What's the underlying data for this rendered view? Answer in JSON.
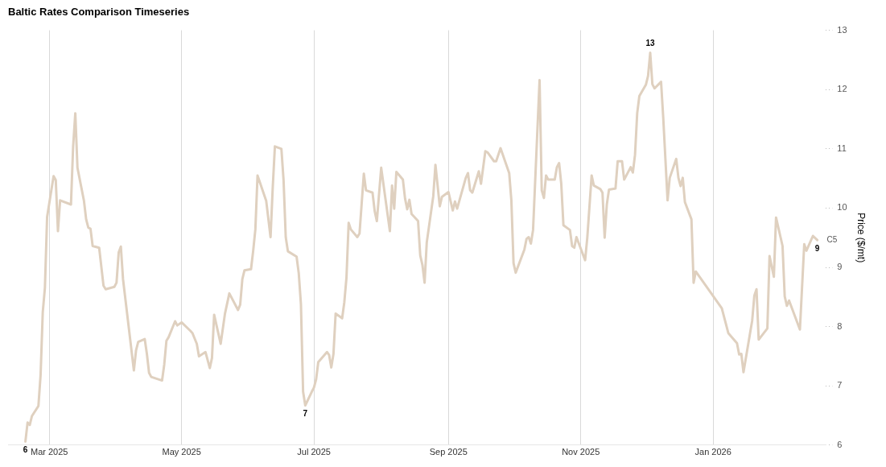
{
  "chart_data": {
    "type": "line",
    "title": "Baltic Rates Comparison Timeseries",
    "ylabel": "Price ($/mt)",
    "x": [
      "2025-02-18",
      "2025-02-19",
      "2025-02-20",
      "2025-02-21",
      "2025-02-24",
      "2025-02-25",
      "2025-02-26",
      "2025-02-27",
      "2025-02-28",
      "2025-03-03",
      "2025-03-04",
      "2025-03-05",
      "2025-03-06",
      "2025-03-11",
      "2025-03-12",
      "2025-03-13",
      "2025-03-14",
      "2025-03-17",
      "2025-03-18",
      "2025-03-19",
      "2025-03-20",
      "2025-03-21",
      "2025-03-24",
      "2025-03-26",
      "2025-03-27",
      "2025-03-31",
      "2025-04-01",
      "2025-04-02",
      "2025-04-03",
      "2025-04-04",
      "2025-04-09",
      "2025-04-10",
      "2025-04-11",
      "2025-04-14",
      "2025-04-15",
      "2025-04-16",
      "2025-04-17",
      "2025-04-22",
      "2025-04-23",
      "2025-04-24",
      "2025-04-25",
      "2025-04-28",
      "2025-04-29",
      "2025-05-01",
      "2025-05-05",
      "2025-05-06",
      "2025-05-08",
      "2025-05-09",
      "2025-05-12",
      "2025-05-14",
      "2025-05-15",
      "2025-05-16",
      "2025-05-19",
      "2025-05-21",
      "2025-05-23",
      "2025-05-27",
      "2025-05-28",
      "2025-05-29",
      "2025-05-30",
      "2025-06-02",
      "2025-06-03",
      "2025-06-04",
      "2025-06-05",
      "2025-06-09",
      "2025-06-11",
      "2025-06-12",
      "2025-06-13",
      "2025-06-16",
      "2025-06-17",
      "2025-06-18",
      "2025-06-19",
      "2025-06-23",
      "2025-06-24",
      "2025-06-25",
      "2025-06-26",
      "2025-06-27",
      "2025-06-30",
      "2025-07-01",
      "2025-07-02",
      "2025-07-03",
      "2025-07-07",
      "2025-07-08",
      "2025-07-09",
      "2025-07-10",
      "2025-07-11",
      "2025-07-14",
      "2025-07-15",
      "2025-07-16",
      "2025-07-17",
      "2025-07-18",
      "2025-07-21",
      "2025-07-22",
      "2025-07-24",
      "2025-07-25",
      "2025-07-28",
      "2025-07-29",
      "2025-07-30",
      "2025-08-01",
      "2025-08-05",
      "2025-08-06",
      "2025-08-07",
      "2025-08-08",
      "2025-08-11",
      "2025-08-12",
      "2025-08-13",
      "2025-08-14",
      "2025-08-15",
      "2025-08-18",
      "2025-08-19",
      "2025-08-20",
      "2025-08-21",
      "2025-08-22",
      "2025-08-25",
      "2025-08-26",
      "2025-08-28",
      "2025-08-29",
      "2025-09-01",
      "2025-09-03",
      "2025-09-04",
      "2025-09-05",
      "2025-09-09",
      "2025-09-10",
      "2025-09-11",
      "2025-09-12",
      "2025-09-15",
      "2025-09-16",
      "2025-09-18",
      "2025-09-19",
      "2025-09-22",
      "2025-09-23",
      "2025-09-25",
      "2025-09-29",
      "2025-09-30",
      "2025-10-01",
      "2025-10-02",
      "2025-10-06",
      "2025-10-07",
      "2025-10-08",
      "2025-10-09",
      "2025-10-10",
      "2025-10-13",
      "2025-10-14",
      "2025-10-15",
      "2025-10-16",
      "2025-10-17",
      "2025-10-20",
      "2025-10-21",
      "2025-10-22",
      "2025-10-23",
      "2025-10-24",
      "2025-10-27",
      "2025-10-28",
      "2025-10-29",
      "2025-10-30",
      "2025-11-03",
      "2025-11-04",
      "2025-11-06",
      "2025-11-07",
      "2025-11-10",
      "2025-11-11",
      "2025-11-12",
      "2025-11-13",
      "2025-11-14",
      "2025-11-17",
      "2025-11-18",
      "2025-11-20",
      "2025-11-21",
      "2025-11-24",
      "2025-11-25",
      "2025-11-26",
      "2025-11-27",
      "2025-11-28",
      "2025-12-01",
      "2025-12-02",
      "2025-12-03",
      "2025-12-04",
      "2025-12-05",
      "2025-12-08",
      "2025-12-09",
      "2025-12-11",
      "2025-12-12",
      "2025-12-15",
      "2025-12-16",
      "2025-12-17",
      "2025-12-18",
      "2025-12-19",
      "2025-12-22",
      "2025-12-23",
      "2025-12-24",
      "2026-01-05",
      "2026-01-08",
      "2026-01-12",
      "2026-01-13",
      "2026-01-14",
      "2026-01-15",
      "2026-01-19",
      "2026-01-20",
      "2026-01-21",
      "2026-01-22",
      "2026-01-26",
      "2026-01-27",
      "2026-01-29",
      "2026-01-30",
      "2026-02-02",
      "2026-02-03",
      "2026-02-04",
      "2026-02-05",
      "2026-02-10",
      "2026-02-12",
      "2026-02-13",
      "2026-02-16",
      "2026-02-18"
    ],
    "series": [
      {
        "name": "C5",
        "color": "#dfd0bf",
        "values": [
          6.06,
          6.38,
          6.34,
          6.49,
          6.66,
          7.18,
          8.24,
          8.66,
          9.85,
          10.54,
          10.47,
          9.61,
          10.13,
          10.06,
          11.04,
          11.6,
          10.68,
          10.12,
          9.81,
          9.67,
          9.65,
          9.36,
          9.33,
          8.69,
          8.63,
          8.67,
          8.74,
          9.25,
          9.35,
          8.8,
          7.26,
          7.6,
          7.74,
          7.79,
          7.54,
          7.22,
          7.15,
          7.09,
          7.36,
          7.76,
          7.82,
          8.09,
          8.02,
          8.07,
          7.93,
          7.89,
          7.71,
          7.5,
          7.57,
          7.3,
          7.47,
          8.2,
          7.71,
          8.22,
          8.56,
          8.28,
          8.37,
          8.8,
          8.95,
          8.97,
          9.28,
          9.64,
          10.55,
          10.12,
          9.51,
          10.34,
          11.04,
          11.0,
          10.47,
          9.51,
          9.27,
          9.18,
          8.9,
          8.38,
          6.9,
          6.67,
          6.9,
          6.97,
          7.11,
          7.4,
          7.57,
          7.52,
          7.31,
          7.54,
          8.22,
          8.14,
          8.41,
          8.83,
          9.75,
          9.64,
          9.51,
          9.57,
          10.58,
          10.3,
          10.26,
          9.95,
          9.78,
          10.68,
          9.61,
          10.38,
          9.99,
          10.61,
          10.48,
          10.16,
          9.98,
          10.14,
          9.9,
          9.78,
          9.2,
          9.04,
          8.74,
          9.42,
          10.2,
          10.73,
          10.03,
          10.19,
          10.27,
          9.96,
          10.11,
          9.99,
          10.51,
          10.59,
          10.3,
          10.26,
          10.62,
          10.41,
          10.96,
          10.94,
          10.79,
          10.79,
          11.01,
          10.59,
          10.13,
          9.07,
          8.91,
          9.3,
          9.48,
          9.51,
          9.4,
          9.63,
          12.16,
          10.3,
          10.17,
          10.55,
          10.48,
          10.48,
          10.69,
          10.76,
          10.41,
          9.71,
          9.63,
          9.36,
          9.33,
          9.51,
          9.12,
          9.5,
          10.55,
          10.38,
          10.32,
          10.26,
          9.5,
          10.06,
          10.31,
          10.33,
          10.79,
          10.79,
          10.48,
          10.69,
          10.6,
          10.9,
          11.6,
          11.89,
          12.08,
          12.23,
          12.62,
          12.09,
          12.02,
          12.13,
          11.53,
          10.13,
          10.51,
          10.83,
          10.51,
          10.37,
          10.51,
          10.1,
          9.81,
          8.74,
          8.93,
          8.31,
          7.89,
          7.72,
          7.53,
          7.54,
          7.23,
          8.1,
          8.52,
          8.63,
          7.78,
          7.97,
          9.19,
          8.84,
          9.84,
          9.36,
          8.51,
          8.35,
          8.44,
          7.95,
          9.39,
          9.28,
          9.53,
          9.46
        ],
        "value_labels": [
          "6",
          null,
          null,
          null,
          null,
          null,
          null,
          null,
          null,
          null,
          null,
          null,
          null,
          null,
          null,
          null,
          null,
          null,
          null,
          null,
          null,
          null,
          null,
          null,
          null,
          null,
          null,
          null,
          null,
          null,
          null,
          null,
          null,
          null,
          null,
          null,
          null,
          null,
          null,
          null,
          null,
          null,
          null,
          null,
          null,
          null,
          null,
          null,
          null,
          null,
          null,
          null,
          null,
          null,
          null,
          null,
          null,
          null,
          null,
          null,
          null,
          null,
          null,
          null,
          null,
          null,
          null,
          null,
          null,
          null,
          null,
          null,
          null,
          null,
          null,
          "7",
          null,
          null,
          null,
          null,
          null,
          null,
          null,
          null,
          null,
          null,
          null,
          null,
          null,
          null,
          null,
          null,
          null,
          null,
          null,
          null,
          null,
          null,
          null,
          null,
          null,
          null,
          null,
          null,
          null,
          null,
          null,
          null,
          null,
          null,
          null,
          null,
          null,
          null,
          null,
          null,
          null,
          null,
          null,
          null,
          null,
          null,
          null,
          null,
          null,
          null,
          null,
          null,
          null,
          null,
          null,
          null,
          null,
          null,
          null,
          null,
          null,
          null,
          null,
          null,
          null,
          null,
          null,
          null,
          null,
          null,
          null,
          null,
          null,
          null,
          null,
          null,
          null,
          null,
          null,
          null,
          null,
          null,
          null,
          null,
          null,
          null,
          null,
          null,
          null,
          null,
          null,
          null,
          null,
          null,
          null,
          null,
          null,
          null,
          "13",
          null,
          null,
          null,
          null,
          null,
          null,
          null,
          null,
          null,
          null,
          null,
          null,
          null,
          null,
          null,
          null,
          null,
          null,
          null,
          null,
          null,
          null,
          null,
          null,
          null,
          null,
          null,
          null,
          null,
          null,
          null,
          null,
          null,
          null,
          null,
          null,
          "9"
        ]
      }
    ],
    "xlim": [
      "2025-02-10",
      "2026-02-22"
    ],
    "xticks": [
      {
        "value": "2025-03",
        "label": "Mar 2025"
      },
      {
        "value": "2025-05",
        "label": "May 2025"
      },
      {
        "value": "2025-07",
        "label": "Jul 2025"
      },
      {
        "value": "2025-09",
        "label": "Sep 2025"
      },
      {
        "value": "2025-11",
        "label": "Nov 2025"
      },
      {
        "value": "2026-01",
        "label": "Jan 2026"
      }
    ],
    "ylim": [
      6,
      13
    ],
    "yticks": [
      6,
      7,
      8,
      9,
      10,
      11,
      12,
      13
    ],
    "grid": "x",
    "legend": false,
    "marker": "none",
    "line_style": "solid"
  }
}
